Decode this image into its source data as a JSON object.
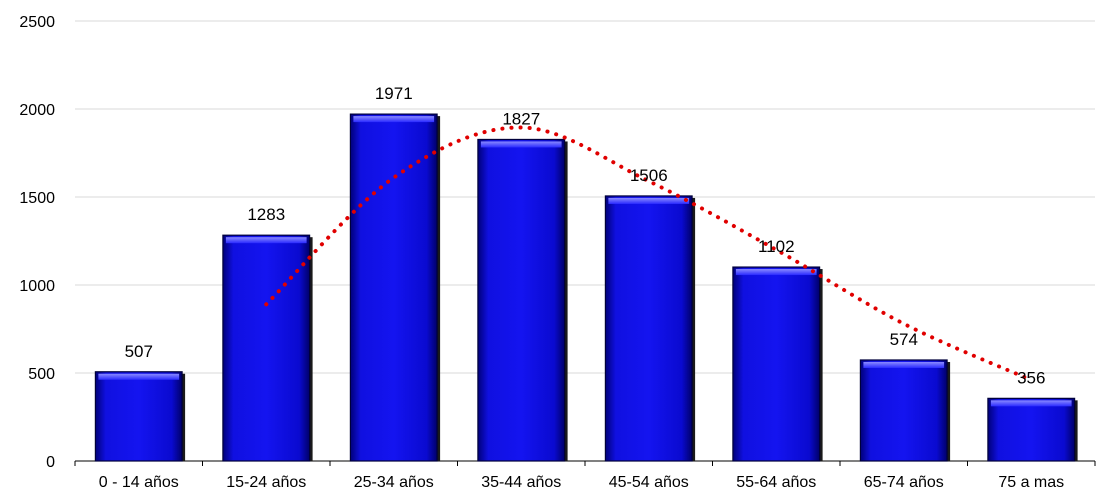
{
  "chart_data": {
    "type": "bar",
    "title": "",
    "xlabel": "",
    "ylabel": "",
    "categories": [
      "0 - 14 años",
      "15-24 años",
      "25-34 años",
      "35-44 años",
      "45-54 años",
      "55-64 años",
      "65-74 años",
      "75 a mas"
    ],
    "values": [
      507,
      1283,
      1971,
      1827,
      1506,
      1102,
      574,
      356
    ],
    "ylim": [
      0,
      2500
    ],
    "yticks": [
      0,
      500,
      1000,
      1500,
      2000,
      2500
    ],
    "grid": true,
    "legend": "none",
    "trendline": {
      "style": "dotted",
      "color": "#e00000",
      "values": [
        null,
        890,
        1610,
        1895,
        1590,
        1200,
        780,
        460
      ]
    },
    "colors": {
      "bar": "#0a0ad2",
      "bar_top": "#4a4aff",
      "bar_edge": "#00003a",
      "grid": "#d9d9d9",
      "axis": "#000000"
    }
  }
}
